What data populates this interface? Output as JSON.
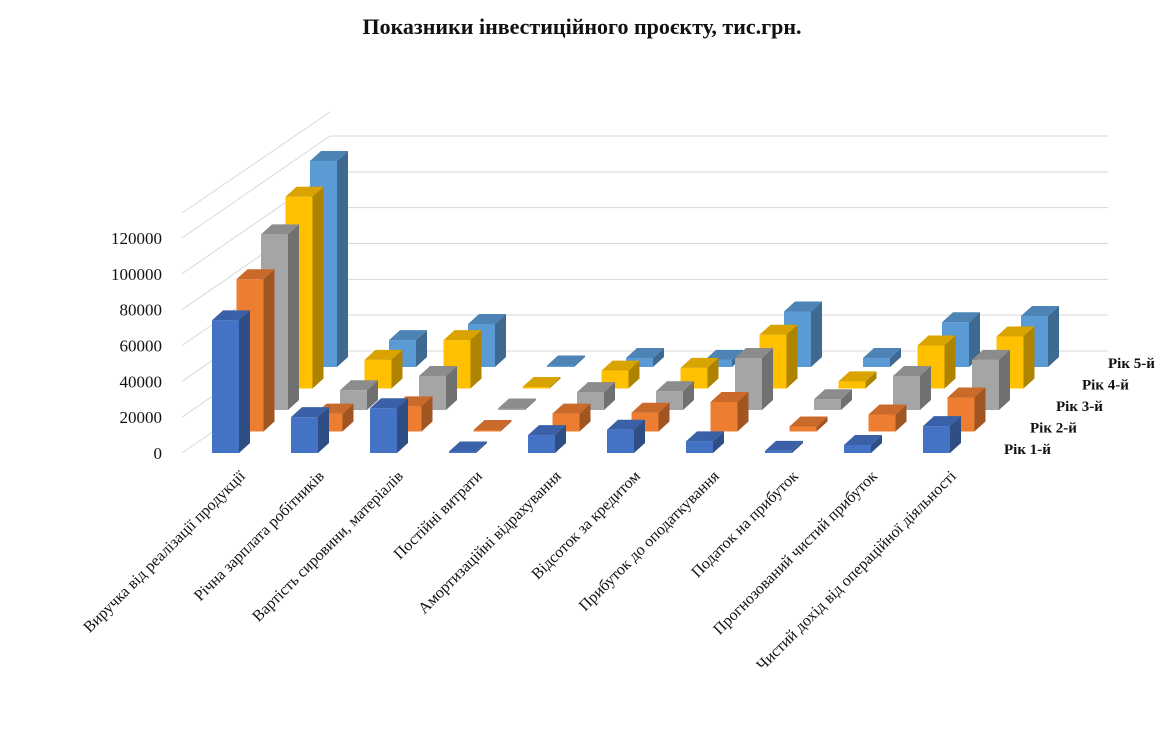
{
  "chart_data": {
    "type": "bar",
    "subtype": "3d-clustered-column",
    "title": "Показники інвестиційного проєкту, тис.грн.",
    "categories": [
      "Виручка від реалізації продукції",
      "Річна зарплата робітників",
      "Вартість сировини, матеріалів",
      "Постійні витрати",
      "Амортизаційні відрахування",
      "Відсоток за кредитом",
      "Прибуток до оподаткування",
      "Податок на прибуток",
      "Прогнозований чистий прибуток",
      "Чистий дохід від операційної діяльності"
    ],
    "series": [
      {
        "name": "Рік 1-й",
        "values": [
          74000,
          20000,
          25000,
          500,
          10000,
          13000,
          6500,
          1200,
          4500,
          15000
        ]
      },
      {
        "name": "Рік 2-й",
        "values": [
          85000,
          10000,
          14000,
          300,
          10000,
          10500,
          16500,
          2800,
          9500,
          19000
        ]
      },
      {
        "name": "Рік 3-й",
        "values": [
          98000,
          11000,
          19000,
          300,
          10000,
          10500,
          29000,
          6000,
          19000,
          28000
        ]
      },
      {
        "name": "Рік 4-й",
        "values": [
          107000,
          16000,
          27000,
          500,
          10000,
          11500,
          30000,
          4000,
          24000,
          29000
        ]
      },
      {
        "name": "Рік 5-й",
        "values": [
          115000,
          15000,
          24000,
          500,
          5000,
          4000,
          31000,
          5000,
          25000,
          28500
        ]
      }
    ],
    "y_ticks": [
      "0",
      "20000",
      "40000",
      "60000",
      "80000",
      "100000",
      "120000"
    ],
    "ylim": [
      0,
      120000
    ],
    "legend_position": "right-depth-axis",
    "grid": true,
    "colors": [
      "#4472C4",
      "#ED7D31",
      "#A5A5A5",
      "#FFC000",
      "#5B9BD5"
    ]
  }
}
